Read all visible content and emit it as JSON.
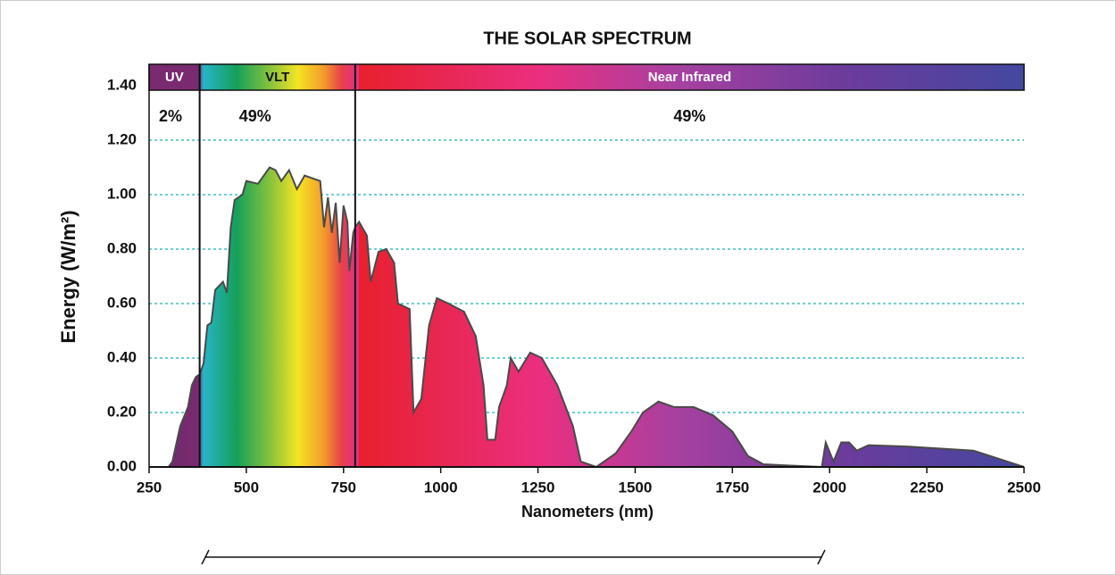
{
  "chart_data": {
    "type": "area",
    "title": "THE SOLAR SPECTRUM",
    "x_label": "Nanometers (nm)",
    "y_label": "Energy (W/m²)",
    "xlim": [
      250,
      2500
    ],
    "xticks": [
      250,
      500,
      750,
      1000,
      1250,
      1500,
      1750,
      2000,
      2250,
      2500
    ],
    "ylim": [
      0,
      1.4
    ],
    "yticks": [
      {
        "value": 0,
        "label": "0.00"
      },
      {
        "value": 0.2,
        "label": "0.20"
      },
      {
        "value": 0.4,
        "label": "0.40"
      },
      {
        "value": 0.6,
        "label": "0.60"
      },
      {
        "value": 0.8,
        "label": "0.80"
      },
      {
        "value": 1.0,
        "label": "1.00"
      },
      {
        "value": 1.2,
        "label": "1.20"
      },
      {
        "value": 1.4,
        "label": "1.40"
      }
    ],
    "grid": true,
    "regions": [
      {
        "name": "UV",
        "start": 250,
        "end": 380,
        "share": 2,
        "share_label": "2%"
      },
      {
        "name": "VLT",
        "start": 380,
        "end": 780,
        "share": 49,
        "share_label": "49%"
      },
      {
        "name": "Near Infrared",
        "start": 780,
        "end": 2500,
        "share": 49,
        "share_label": "49%"
      }
    ],
    "x": [
      300,
      310,
      330,
      350,
      360,
      370,
      380,
      390,
      400,
      410,
      420,
      440,
      450,
      460,
      470,
      490,
      500,
      530,
      540,
      560,
      575,
      590,
      610,
      630,
      650,
      670,
      690,
      700,
      710,
      720,
      730,
      740,
      750,
      760,
      765,
      775,
      780,
      790,
      810,
      820,
      840,
      860,
      880,
      890,
      920,
      930,
      950,
      970,
      990,
      1020,
      1060,
      1090,
      1110,
      1120,
      1140,
      1150,
      1170,
      1180,
      1200,
      1230,
      1260,
      1300,
      1340,
      1360,
      1400,
      1450,
      1490,
      1520,
      1560,
      1600,
      1650,
      1700,
      1750,
      1790,
      1830,
      1900,
      1980,
      1990,
      2010,
      2030,
      2050,
      2070,
      2100,
      2200,
      2370,
      2500
    ],
    "values": [
      0,
      0.02,
      0.15,
      0.22,
      0.3,
      0.33,
      0.34,
      0.38,
      0.52,
      0.53,
      0.65,
      0.68,
      0.64,
      0.88,
      0.98,
      1.0,
      1.05,
      1.04,
      1.06,
      1.1,
      1.09,
      1.05,
      1.09,
      1.02,
      1.07,
      1.06,
      1.05,
      0.88,
      0.99,
      0.86,
      0.97,
      0.75,
      0.96,
      0.9,
      0.72,
      0.86,
      0.88,
      0.9,
      0.85,
      0.68,
      0.79,
      0.8,
      0.75,
      0.6,
      0.58,
      0.2,
      0.25,
      0.52,
      0.62,
      0.6,
      0.57,
      0.48,
      0.3,
      0.1,
      0.1,
      0.22,
      0.3,
      0.4,
      0.35,
      0.42,
      0.4,
      0.3,
      0.15,
      0.02,
      0,
      0.05,
      0.13,
      0.2,
      0.24,
      0.22,
      0.22,
      0.19,
      0.13,
      0.04,
      0.01,
      0.005,
      0,
      0.09,
      0.02,
      0.09,
      0.09,
      0.06,
      0.08,
      0.075,
      0.06,
      0
    ]
  }
}
